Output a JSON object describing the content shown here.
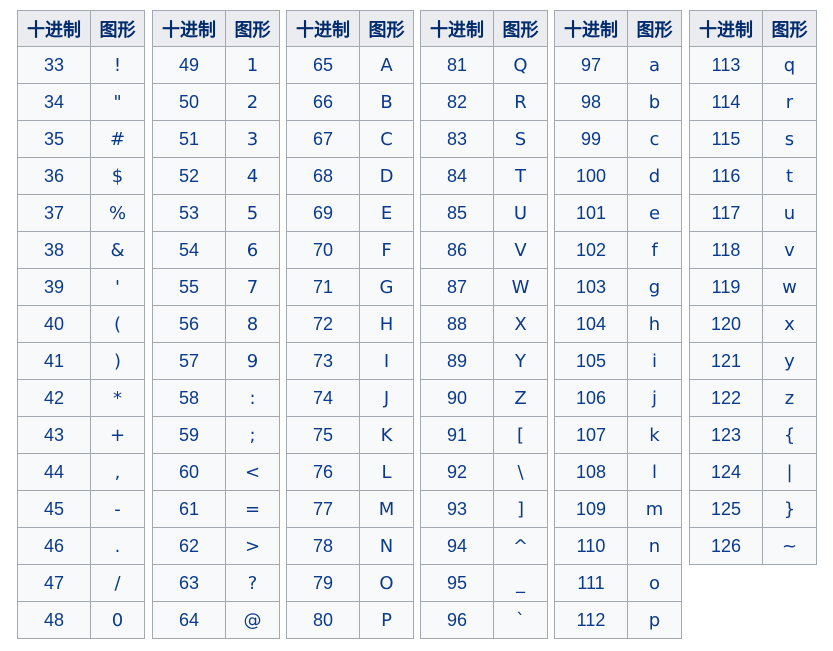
{
  "headers": {
    "decimal": "十进制",
    "glyph": "图形"
  },
  "tables": [
    {
      "rows": [
        {
          "dec": "33",
          "char": "!"
        },
        {
          "dec": "34",
          "char": "\""
        },
        {
          "dec": "35",
          "char": "#"
        },
        {
          "dec": "36",
          "char": "$"
        },
        {
          "dec": "37",
          "char": "%"
        },
        {
          "dec": "38",
          "char": "&"
        },
        {
          "dec": "39",
          "char": "'"
        },
        {
          "dec": "40",
          "char": "("
        },
        {
          "dec": "41",
          "char": ")"
        },
        {
          "dec": "42",
          "char": "*"
        },
        {
          "dec": "43",
          "char": "+"
        },
        {
          "dec": "44",
          "char": ","
        },
        {
          "dec": "45",
          "char": "-"
        },
        {
          "dec": "46",
          "char": "."
        },
        {
          "dec": "47",
          "char": "/"
        },
        {
          "dec": "48",
          "char": "0"
        }
      ]
    },
    {
      "rows": [
        {
          "dec": "49",
          "char": "1"
        },
        {
          "dec": "50",
          "char": "2"
        },
        {
          "dec": "51",
          "char": "3"
        },
        {
          "dec": "52",
          "char": "4"
        },
        {
          "dec": "53",
          "char": "5"
        },
        {
          "dec": "54",
          "char": "6"
        },
        {
          "dec": "55",
          "char": "7"
        },
        {
          "dec": "56",
          "char": "8"
        },
        {
          "dec": "57",
          "char": "9"
        },
        {
          "dec": "58",
          "char": ":"
        },
        {
          "dec": "59",
          "char": ";"
        },
        {
          "dec": "60",
          "char": "<"
        },
        {
          "dec": "61",
          "char": "="
        },
        {
          "dec": "62",
          "char": ">"
        },
        {
          "dec": "63",
          "char": "?"
        },
        {
          "dec": "64",
          "char": "@"
        }
      ]
    },
    {
      "rows": [
        {
          "dec": "65",
          "char": "A"
        },
        {
          "dec": "66",
          "char": "B"
        },
        {
          "dec": "67",
          "char": "C"
        },
        {
          "dec": "68",
          "char": "D"
        },
        {
          "dec": "69",
          "char": "E"
        },
        {
          "dec": "70",
          "char": "F"
        },
        {
          "dec": "71",
          "char": "G"
        },
        {
          "dec": "72",
          "char": "H"
        },
        {
          "dec": "73",
          "char": "I"
        },
        {
          "dec": "74",
          "char": "J"
        },
        {
          "dec": "75",
          "char": "K"
        },
        {
          "dec": "76",
          "char": "L"
        },
        {
          "dec": "77",
          "char": "M"
        },
        {
          "dec": "78",
          "char": "N"
        },
        {
          "dec": "79",
          "char": "O"
        },
        {
          "dec": "80",
          "char": "P"
        }
      ]
    },
    {
      "rows": [
        {
          "dec": "81",
          "char": "Q"
        },
        {
          "dec": "82",
          "char": "R"
        },
        {
          "dec": "83",
          "char": "S"
        },
        {
          "dec": "84",
          "char": "T"
        },
        {
          "dec": "85",
          "char": "U"
        },
        {
          "dec": "86",
          "char": "V"
        },
        {
          "dec": "87",
          "char": "W"
        },
        {
          "dec": "88",
          "char": "X"
        },
        {
          "dec": "89",
          "char": "Y"
        },
        {
          "dec": "90",
          "char": "Z"
        },
        {
          "dec": "91",
          "char": "["
        },
        {
          "dec": "92",
          "char": "\\"
        },
        {
          "dec": "93",
          "char": "]"
        },
        {
          "dec": "94",
          "char": "^"
        },
        {
          "dec": "95",
          "char": "_"
        },
        {
          "dec": "96",
          "char": "`"
        }
      ]
    },
    {
      "rows": [
        {
          "dec": "97",
          "char": "a"
        },
        {
          "dec": "98",
          "char": "b"
        },
        {
          "dec": "99",
          "char": "c"
        },
        {
          "dec": "100",
          "char": "d"
        },
        {
          "dec": "101",
          "char": "e"
        },
        {
          "dec": "102",
          "char": "f"
        },
        {
          "dec": "103",
          "char": "g"
        },
        {
          "dec": "104",
          "char": "h"
        },
        {
          "dec": "105",
          "char": "i"
        },
        {
          "dec": "106",
          "char": "j"
        },
        {
          "dec": "107",
          "char": "k"
        },
        {
          "dec": "108",
          "char": "l"
        },
        {
          "dec": "109",
          "char": "m"
        },
        {
          "dec": "110",
          "char": "n"
        },
        {
          "dec": "111",
          "char": "o"
        },
        {
          "dec": "112",
          "char": "p"
        }
      ]
    },
    {
      "rows": [
        {
          "dec": "113",
          "char": "q"
        },
        {
          "dec": "114",
          "char": "r"
        },
        {
          "dec": "115",
          "char": "s"
        },
        {
          "dec": "116",
          "char": "t"
        },
        {
          "dec": "117",
          "char": "u"
        },
        {
          "dec": "118",
          "char": "v"
        },
        {
          "dec": "119",
          "char": "w"
        },
        {
          "dec": "120",
          "char": "x"
        },
        {
          "dec": "121",
          "char": "y"
        },
        {
          "dec": "122",
          "char": "z"
        },
        {
          "dec": "123",
          "char": "{"
        },
        {
          "dec": "124",
          "char": "|"
        },
        {
          "dec": "125",
          "char": "}"
        },
        {
          "dec": "126",
          "char": "~"
        }
      ]
    }
  ]
}
